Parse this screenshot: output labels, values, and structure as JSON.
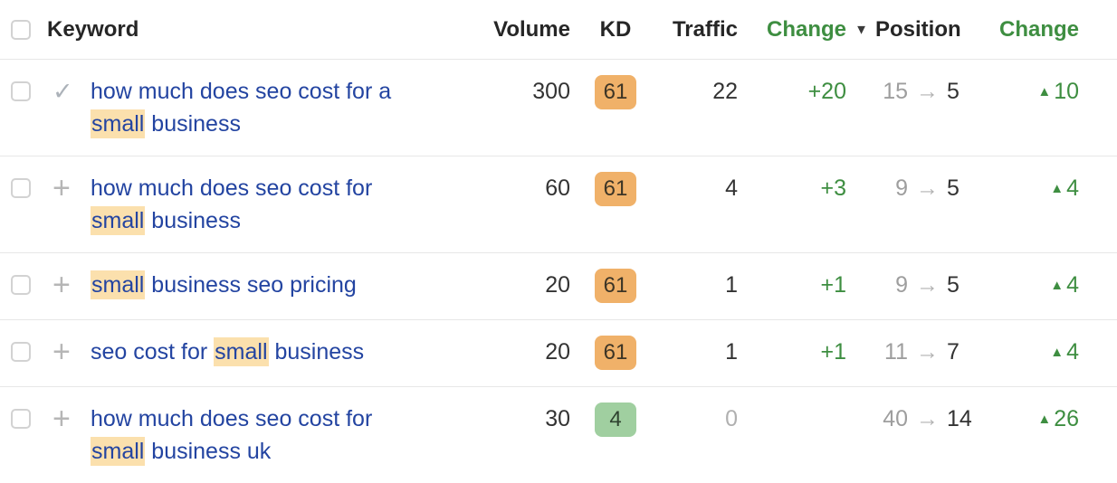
{
  "colors": {
    "link_blue": "#2344a1",
    "keyword_highlight": "#fbe0ad",
    "kd_hard_bg": "#f0b169",
    "kd_easy_bg": "#a0cfa0",
    "positive_green": "#3e8e41",
    "muted_gray": "#b0b0b0",
    "text_dark": "#333333",
    "row_border": "#e7e7e7"
  },
  "table": {
    "columns": {
      "keyword": "Keyword",
      "volume": "Volume",
      "kd": "KD",
      "traffic": "Traffic",
      "traffic_change": "Change",
      "position": "Position",
      "position_change": "Change"
    },
    "sort_indicator": "▼",
    "position_arrow": "→",
    "up_triangle": "▲",
    "rows": [
      {
        "action_icon": "check",
        "keyword_parts": [
          {
            "text": "how much does seo cost for a ",
            "highlight": false
          },
          {
            "text": "small",
            "highlight": true
          },
          {
            "text": " business",
            "highlight": false
          }
        ],
        "volume": "300",
        "kd": "61",
        "kd_level": "hard",
        "traffic": "22",
        "traffic_muted": false,
        "traffic_change": "+20",
        "position_from": "15",
        "position_to": "5",
        "position_change": "10"
      },
      {
        "action_icon": "plus",
        "keyword_parts": [
          {
            "text": "how much does seo cost for ",
            "highlight": false
          },
          {
            "text": "small",
            "highlight": true
          },
          {
            "text": " business",
            "highlight": false
          }
        ],
        "volume": "60",
        "kd": "61",
        "kd_level": "hard",
        "traffic": "4",
        "traffic_muted": false,
        "traffic_change": "+3",
        "position_from": "9",
        "position_to": "5",
        "position_change": "4"
      },
      {
        "action_icon": "plus",
        "keyword_parts": [
          {
            "text": "small",
            "highlight": true
          },
          {
            "text": " business seo pricing",
            "highlight": false
          }
        ],
        "volume": "20",
        "kd": "61",
        "kd_level": "hard",
        "traffic": "1",
        "traffic_muted": false,
        "traffic_change": "+1",
        "position_from": "9",
        "position_to": "5",
        "position_change": "4"
      },
      {
        "action_icon": "plus",
        "keyword_parts": [
          {
            "text": "seo cost for ",
            "highlight": false
          },
          {
            "text": "small",
            "highlight": true
          },
          {
            "text": " business",
            "highlight": false
          }
        ],
        "volume": "20",
        "kd": "61",
        "kd_level": "hard",
        "traffic": "1",
        "traffic_muted": false,
        "traffic_change": "+1",
        "position_from": "11",
        "position_to": "7",
        "position_change": "4"
      },
      {
        "action_icon": "plus",
        "keyword_parts": [
          {
            "text": "how much does seo cost for ",
            "highlight": false
          },
          {
            "text": "small",
            "highlight": true
          },
          {
            "text": " business uk",
            "highlight": false
          }
        ],
        "volume": "30",
        "kd": "4",
        "kd_level": "easy",
        "traffic": "0",
        "traffic_muted": true,
        "traffic_change": "",
        "position_from": "40",
        "position_to": "14",
        "position_change": "26"
      }
    ]
  }
}
